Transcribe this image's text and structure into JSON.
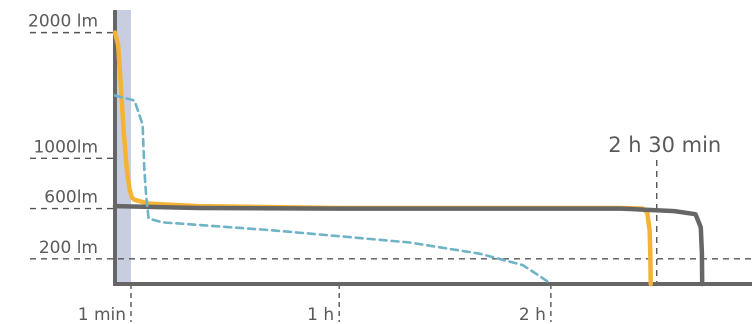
{
  "chart_data": {
    "type": "line",
    "title": "",
    "xlabel": "",
    "ylabel": "",
    "x_unit": "minutes",
    "y_unit": "lm",
    "xlim": [
      0,
      177
    ],
    "ylim": [
      0,
      2180
    ],
    "x_ticks": [
      {
        "label": "1 min",
        "value": 1
      },
      {
        "label": "1 h",
        "value": 60
      },
      {
        "label": "2 h",
        "value": 120
      }
    ],
    "y_ticks": [
      {
        "label": "2000 lm",
        "value": 2000
      },
      {
        "label": "1000lm",
        "value": 1000
      },
      {
        "label": "600lm",
        "value": 600
      },
      {
        "label": "200 lm",
        "value": 200
      }
    ],
    "annotations": [
      {
        "label": "2 h 30 min",
        "x": 150
      }
    ],
    "highlight_band": {
      "x_start": 0,
      "x_end": 1
    },
    "grid": false,
    "legend": "none",
    "series": [
      {
        "color": "#f5b335",
        "width": 4.5,
        "dash": "",
        "points": [
          [
            0,
            2000
          ],
          [
            0.2,
            1900
          ],
          [
            0.35,
            1600
          ],
          [
            0.55,
            1200
          ],
          [
            0.75,
            900
          ],
          [
            0.9,
            760
          ],
          [
            1.2,
            690
          ],
          [
            2,
            670
          ],
          [
            6,
            640
          ],
          [
            20,
            620
          ],
          [
            60,
            605
          ],
          [
            100,
            605
          ],
          [
            140,
            605
          ],
          [
            146,
            600
          ],
          [
            147.3,
            570
          ],
          [
            148,
            420
          ],
          [
            148.2,
            200
          ],
          [
            148.3,
            0
          ]
        ]
      },
      {
        "color": "#666666",
        "width": 4.5,
        "dash": "",
        "points": [
          [
            0,
            620
          ],
          [
            20,
            605
          ],
          [
            60,
            600
          ],
          [
            100,
            600
          ],
          [
            140,
            600
          ],
          [
            155,
            580
          ],
          [
            161,
            555
          ],
          [
            162.5,
            450
          ],
          [
            162.8,
            250
          ],
          [
            162.9,
            0
          ]
        ]
      },
      {
        "color": "#6fb3c7",
        "width": 2.6,
        "dash": "7 5",
        "points": [
          [
            0,
            1500
          ],
          [
            2,
            1460
          ],
          [
            4.3,
            1270
          ],
          [
            4.8,
            900
          ],
          [
            5.3,
            700
          ],
          [
            6,
            520
          ],
          [
            10,
            490
          ],
          [
            20,
            470
          ],
          [
            40,
            430
          ],
          [
            60,
            380
          ],
          [
            80,
            330
          ],
          [
            100,
            240
          ],
          [
            112,
            150
          ],
          [
            117,
            60
          ],
          [
            120,
            0
          ]
        ]
      }
    ]
  }
}
